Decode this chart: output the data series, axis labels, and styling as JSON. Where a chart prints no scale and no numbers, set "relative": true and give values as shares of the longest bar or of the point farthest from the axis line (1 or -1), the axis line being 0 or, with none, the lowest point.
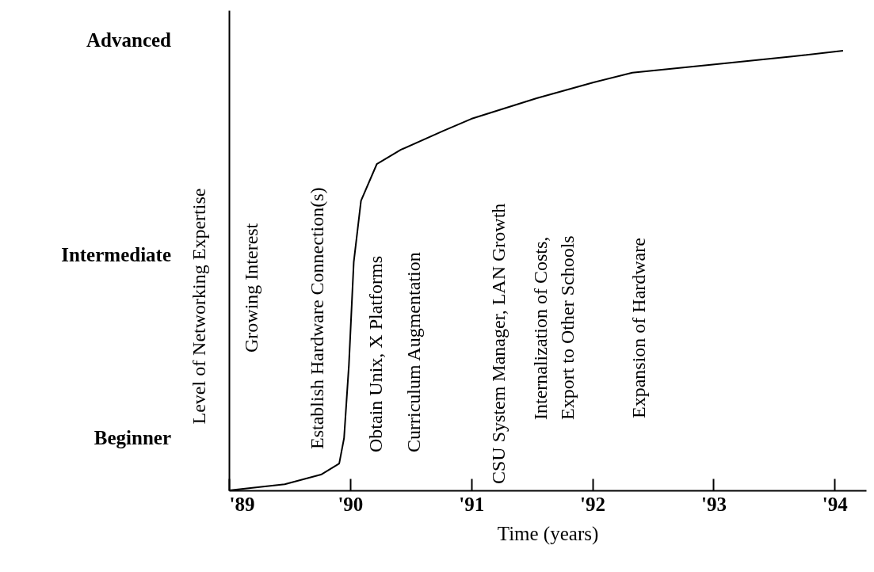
{
  "chart_data": {
    "type": "line",
    "xlabel": "Time (years)",
    "ylabel": "Level of Networking Expertise",
    "relative": true,
    "xlim": [
      1989,
      1994.26
    ],
    "xticks": [
      {
        "value": 1989,
        "label": "'89"
      },
      {
        "value": 1990,
        "label": "'90"
      },
      {
        "value": 1991,
        "label": "'91"
      },
      {
        "value": 1992,
        "label": "'92"
      },
      {
        "value": 1993,
        "label": "'93"
      },
      {
        "value": 1994,
        "label": "'94"
      }
    ],
    "line_style": "solid",
    "x": [
      1989,
      1989.46,
      1989.76,
      1989.91,
      1989.95,
      1989.99,
      1990.03,
      1990.09,
      1990.22,
      1990.42,
      1990.77,
      1991.0,
      1991.54,
      1992.01,
      1992.33,
      1993.01,
      1993.65,
      1994.07
    ],
    "series": [
      {
        "color": "#000000",
        "values": [
          0,
          0.014,
          0.036,
          0.061,
          0.119,
          0.285,
          0.519,
          0.659,
          0.742,
          0.775,
          0.818,
          0.845,
          0.892,
          0.928,
          0.95,
          0.969,
          0.987,
          1
        ]
      }
    ],
    "annotations": [
      "Advanced",
      "Intermediate",
      "Beginner",
      "Growing Interest",
      "Establish Hardware Connection(s)",
      "Obtain Unix, X Platforms",
      "Curriculum Augmentation",
      "CSU System Manager, LAN Growth",
      "Internalization of Costs,",
      "Export to Other Schools",
      "Expansion of Hardware"
    ]
  }
}
